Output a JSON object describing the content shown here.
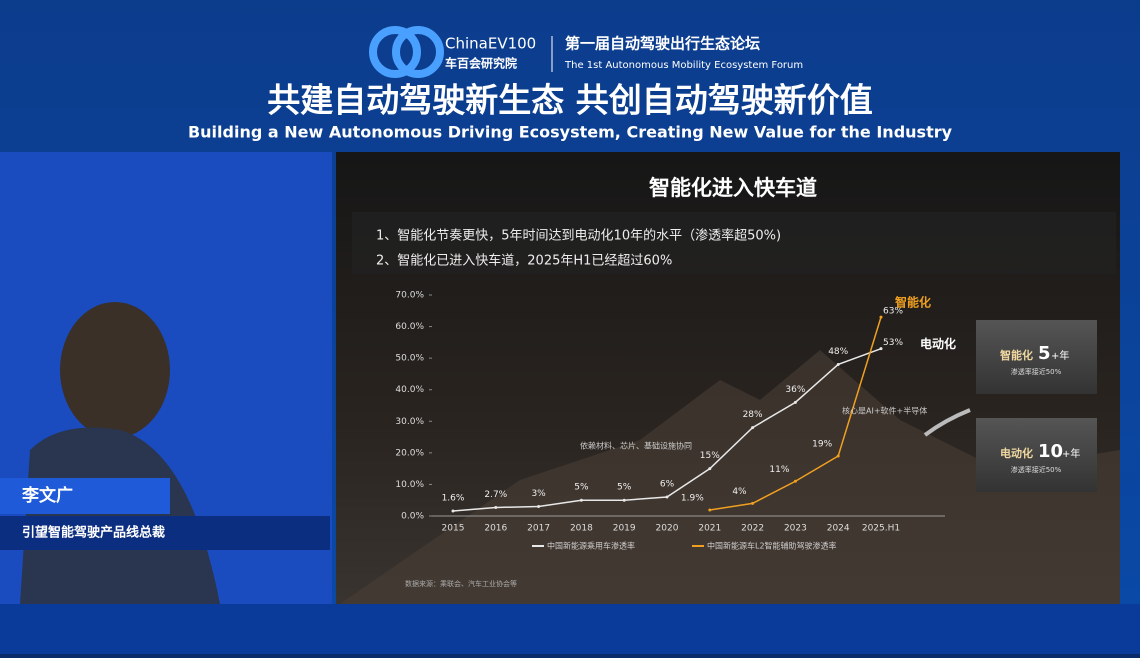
{
  "header": {
    "logo": "ChinaEV100",
    "logo_sub": "车百会研究院",
    "forum_cn": "第一届自动驾驶出行生态论坛",
    "forum_en": "The 1st Autonomous Mobility Ecosystem Forum",
    "title_cn": "共建自动驾驶新生态  共创自动驾驶新价值",
    "title_en": "Building a New Autonomous Driving Ecosystem, Creating New Value for the Industry"
  },
  "speaker": {
    "name": "李文广",
    "role": "引望智能驾驶产品线总裁"
  },
  "slide": {
    "bullets": [
      "1、智能化节奏更快，5年时间达到电动化10年的水平（渗透率超50%)",
      "2、智能化已进入快车道，2025年H1已经超过60%"
    ],
    "boxes": [
      {
        "label": "智能化",
        "num": "5",
        "suffix": "+年",
        "sub": "渗透率接近50%"
      },
      {
        "label": "电动化",
        "num": "10",
        "suffix": "+年",
        "sub": "渗透率接近50%"
      }
    ],
    "source": "数据来源：乘联会、汽车工业协会等"
  },
  "chart_data": {
    "type": "line",
    "title": "智能化进入快车道",
    "categories": [
      "2015",
      "2016",
      "2017",
      "2018",
      "2019",
      "2020",
      "2021",
      "2022",
      "2023",
      "2024",
      "2025.H1"
    ],
    "series": [
      {
        "name": "中国新能源乘用车渗透率",
        "tag": "电动化",
        "color": "#e8e8e8",
        "values": [
          1.6,
          2.7,
          3,
          5,
          5,
          6,
          15,
          28,
          36,
          48,
          53
        ],
        "value_labels": [
          "1.6%",
          "2.7%",
          "3%",
          "5%",
          "5%",
          "6%",
          "15%",
          "28%",
          "36%",
          "48%",
          "53%"
        ]
      },
      {
        "name": "中国新能源车L2智能辅助驾驶渗透率",
        "tag": "智能化",
        "color": "#f0a020",
        "values": [
          null,
          null,
          null,
          null,
          null,
          null,
          1.9,
          4,
          11,
          19,
          63
        ],
        "value_labels": [
          null,
          null,
          null,
          null,
          null,
          null,
          "1.9%",
          "4%",
          "11%",
          "19%",
          "63%"
        ]
      }
    ],
    "annotations": [
      "依赖材料、芯片、基础设施协同",
      "核心是AI+软件+半导体"
    ],
    "ylim": [
      0,
      70
    ],
    "yticks": [
      {
        "value": 0,
        "label": "0.0%"
      },
      {
        "value": 10,
        "label": "10.0%"
      },
      {
        "value": 20,
        "label": "20.0%"
      },
      {
        "value": 30,
        "label": "30.0%"
      },
      {
        "value": 40,
        "label": "40.0%"
      },
      {
        "value": 50,
        "label": "50.0%"
      },
      {
        "value": 60,
        "label": "60.0%"
      },
      {
        "value": 70,
        "label": "70.0%"
      }
    ]
  }
}
